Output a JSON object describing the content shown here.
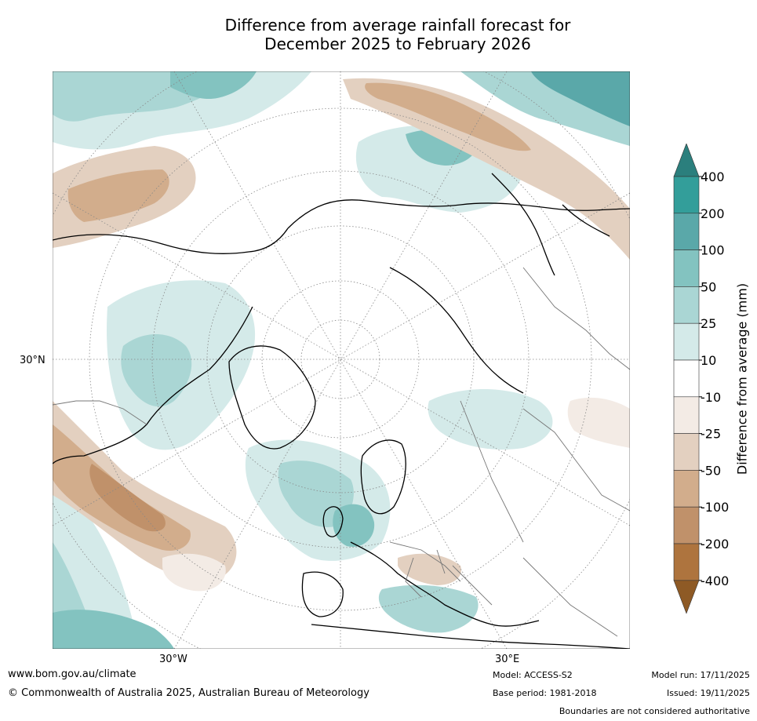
{
  "title": {
    "line1": "Difference from average rainfall forecast for",
    "line2": "December 2025 to February 2026"
  },
  "map": {
    "lat_label": "30°N",
    "lon_labels": [
      "30°W",
      "30°E"
    ]
  },
  "colorbar": {
    "label": "Difference from average (mm)",
    "ticks": [
      "400",
      "200",
      "100",
      "50",
      "25",
      "10",
      "-10",
      "-25",
      "-50",
      "-100",
      "-200",
      "-400"
    ],
    "colors": {
      "wet_extreme": "#2b7f7d",
      "wet_400": "#339e9a",
      "wet_200": "#5aa8a9",
      "wet_100": "#83c3c0",
      "wet_50": "#aad6d4",
      "wet_25": "#d4eae9",
      "neutral": "#ffffff",
      "dry_10": "#f3ebe5",
      "dry_25": "#e3d0c0",
      "dry_50": "#d2ad8c",
      "dry_100": "#c0916a",
      "dry_200": "#ae743e",
      "dry_extreme": "#8e5a25"
    }
  },
  "footer": {
    "website": "www.bom.gov.au/climate",
    "copyright": "© Commonwealth of Australia 2025, Australian Bureau of Meteorology",
    "model": "Model: ACCESS-S2",
    "base_period": "Base period: 1981-2018",
    "model_run": "Model run: 17/11/2025",
    "issued": "Issued: 19/11/2025",
    "disclaimer": "Boundaries are not considered authoritative"
  }
}
